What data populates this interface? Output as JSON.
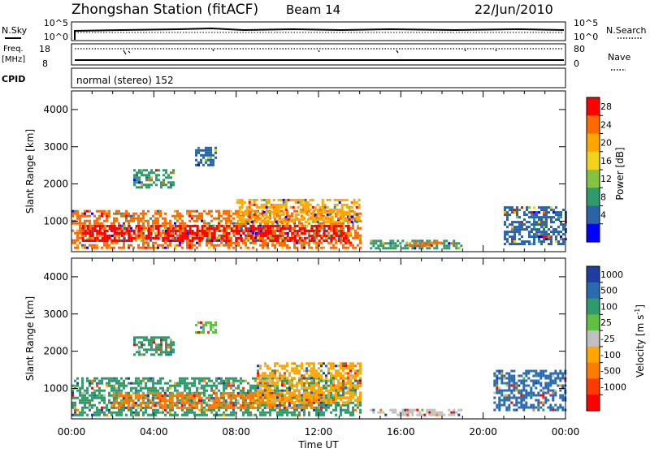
{
  "header": {
    "title": "Zhongshan Station (fitACF)",
    "beam": "Beam 14",
    "date": "22/Jun/2010"
  },
  "top_panels": {
    "nsky_label": "N.Sky",
    "nsearch_label": "N.Search",
    "nsky_ticks": [
      "10^5",
      "10^0"
    ],
    "nsearch_ticks": [
      "10^5",
      "10^0"
    ],
    "freq_label_line1": "Freq.",
    "freq_label_line2": "[MHz]",
    "freq_ticks": [
      "18",
      "8"
    ],
    "nave_label": "Nave",
    "nave_ticks": [
      "80",
      "0"
    ],
    "cpid_label": "CPID",
    "cpid_text": "normal (stereo) 152"
  },
  "chart_data": [
    {
      "type": "heatmap",
      "name": "power",
      "ylabel": "Slant Range [km]",
      "ylim": [
        180,
        4500
      ],
      "yticks": [
        "1000",
        "2000",
        "3000",
        "4000"
      ],
      "xlabel": "Time UT",
      "xticks": [
        "00:00",
        "04:00",
        "08:00",
        "12:00",
        "16:00",
        "20:00",
        "00:00"
      ],
      "colorbar": {
        "label": "Power [dB]",
        "ticks": [
          "28",
          "24",
          "20",
          "16",
          "12",
          "8",
          "4"
        ],
        "colors": [
          "#ff0000",
          "#ff6a00",
          "#ffa600",
          "#f3d21b",
          "#82c341",
          "#2f9a6a",
          "#2a64a8",
          "#0000ff"
        ]
      },
      "regions": [
        {
          "t0": 0.0,
          "t1": 14.0,
          "r0": 300,
          "r1": 1300,
          "color": "#ff6a00"
        },
        {
          "t0": 0.5,
          "t1": 13.5,
          "r0": 450,
          "r1": 900,
          "color": "#ff0000"
        },
        {
          "t0": 8.0,
          "t1": 14.0,
          "r0": 1000,
          "r1": 1600,
          "color": "#ffa600"
        },
        {
          "t0": 14.5,
          "t1": 19.0,
          "r0": 300,
          "r1": 500,
          "color": "#2f9a6a"
        },
        {
          "t0": 16.0,
          "t1": 18.0,
          "r0": 350,
          "r1": 450,
          "color": "#ff6a00"
        },
        {
          "t0": 21.0,
          "t1": 24.0,
          "r0": 400,
          "r1": 1400,
          "color": "#2a64a8"
        },
        {
          "t0": 6.0,
          "t1": 7.0,
          "r0": 2500,
          "r1": 3000,
          "color": "#2a64a8"
        },
        {
          "t0": 3.0,
          "t1": 5.0,
          "r0": 1900,
          "r1": 2400,
          "color": "#2f9a6a"
        }
      ]
    },
    {
      "type": "heatmap",
      "name": "velocity",
      "ylabel": "Slant Range [km]",
      "ylim": [
        180,
        4500
      ],
      "yticks": [
        "1000",
        "2000",
        "3000",
        "4000"
      ],
      "xlabel": "Time UT",
      "xticks": [
        "00:00",
        "04:00",
        "08:00",
        "12:00",
        "16:00",
        "20:00",
        "00:00"
      ],
      "colorbar": {
        "label": "Velocity [m s",
        "label_sup": "-1",
        "label_end": "]",
        "ticks": [
          "1000",
          "500",
          "100",
          "25",
          "-25",
          "-100",
          "-500",
          "-1000"
        ],
        "colors": [
          "#1f3fa0",
          "#2a6ab0",
          "#2f9a6a",
          "#5fbf3f",
          "#c0c0c0",
          "#ffa600",
          "#ff7a00",
          "#ff3a00",
          "#ff0000"
        ]
      },
      "regions": [
        {
          "t0": 0.0,
          "t1": 14.0,
          "r0": 300,
          "r1": 1300,
          "color": "#2f9a6a"
        },
        {
          "t0": 2.0,
          "t1": 12.0,
          "r0": 450,
          "r1": 900,
          "color": "#ff7a00"
        },
        {
          "t0": 9.0,
          "t1": 14.0,
          "r0": 600,
          "r1": 1700,
          "color": "#ffa600"
        },
        {
          "t0": 14.5,
          "t1": 19.0,
          "r0": 300,
          "r1": 450,
          "color": "#c0c0c0"
        },
        {
          "t0": 20.5,
          "t1": 24.0,
          "r0": 400,
          "r1": 1500,
          "color": "#2a6ab0"
        },
        {
          "t0": 6.0,
          "t1": 7.0,
          "r0": 2500,
          "r1": 2800,
          "color": "#5fbf3f"
        },
        {
          "t0": 3.0,
          "t1": 5.0,
          "r0": 1900,
          "r1": 2400,
          "color": "#2f9a6a"
        }
      ]
    }
  ]
}
